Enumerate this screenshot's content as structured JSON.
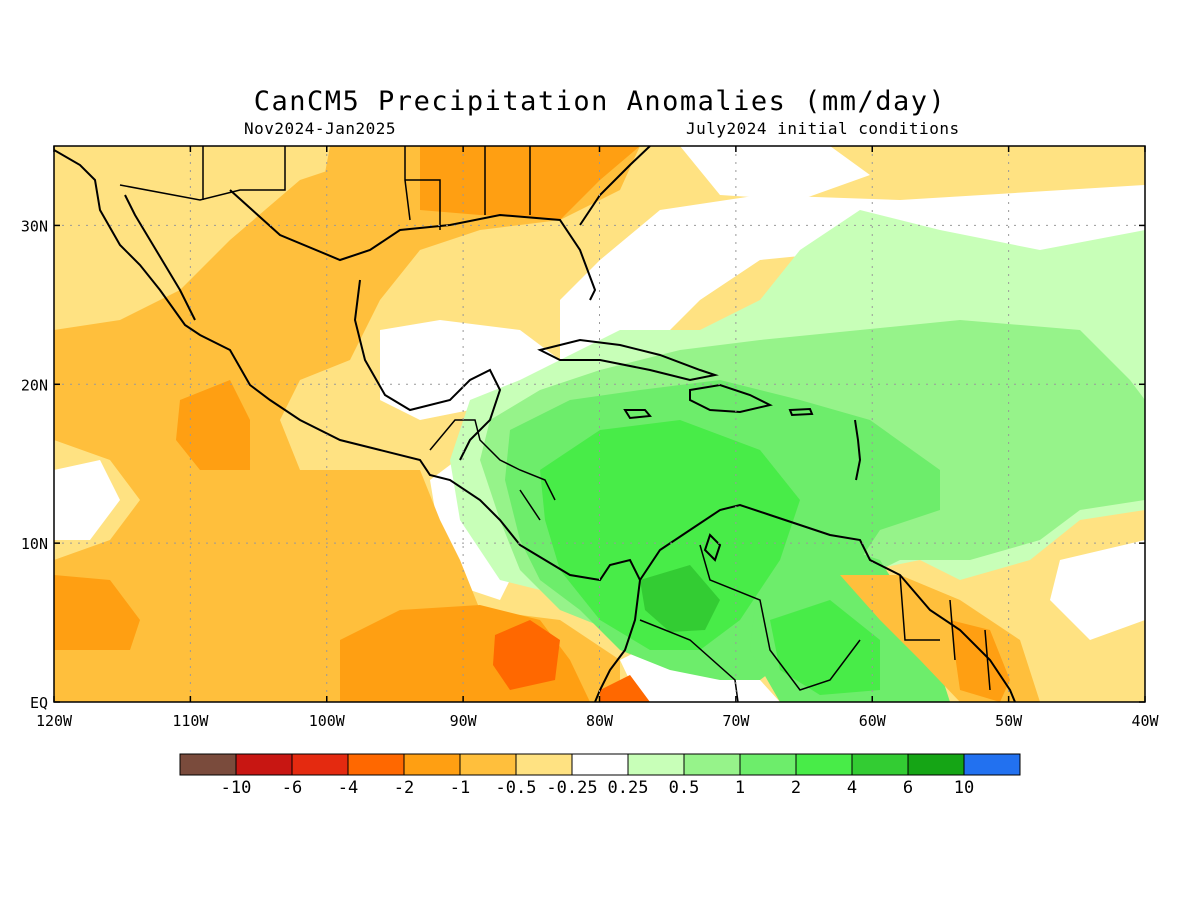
{
  "title": "CanCM5 Precipitation Anomalies (mm/day)",
  "subtitle_left": "Nov2024-Jan2025",
  "subtitle_right": "July2024 initial conditions",
  "map": {
    "lon_range": [
      -120,
      -40
    ],
    "lat_range": [
      0,
      35
    ],
    "grid": "dotted"
  },
  "lon_ticks": [
    {
      "value": -120,
      "label": "120W"
    },
    {
      "value": -110,
      "label": "110W"
    },
    {
      "value": -100,
      "label": "100W"
    },
    {
      "value": -90,
      "label": "90W"
    },
    {
      "value": -80,
      "label": "80W"
    },
    {
      "value": -70,
      "label": "70W"
    },
    {
      "value": -60,
      "label": "60W"
    },
    {
      "value": -50,
      "label": "50W"
    },
    {
      "value": -40,
      "label": "40W"
    }
  ],
  "lat_ticks": [
    {
      "value": 0,
      "label": "EQ"
    },
    {
      "value": 10,
      "label": "10N"
    },
    {
      "value": 20,
      "label": "20N"
    },
    {
      "value": 30,
      "label": "30N"
    }
  ],
  "colorbar": {
    "colors": [
      "#7a4b3c",
      "#c81612",
      "#e42a10",
      "#ff6800",
      "#ff9f12",
      "#ffbf3c",
      "#ffe282",
      "#ffffff",
      "#c8ffb8",
      "#96f38a",
      "#6ded6b",
      "#48ec48",
      "#33cc33",
      "#15a515",
      "#2271f0"
    ],
    "labels": [
      "-10",
      "-6",
      "-4",
      "-2",
      "-1",
      "-0.5",
      "-0.25",
      "0.25",
      "0.5",
      "1",
      "2",
      "4",
      "6",
      "10"
    ]
  }
}
